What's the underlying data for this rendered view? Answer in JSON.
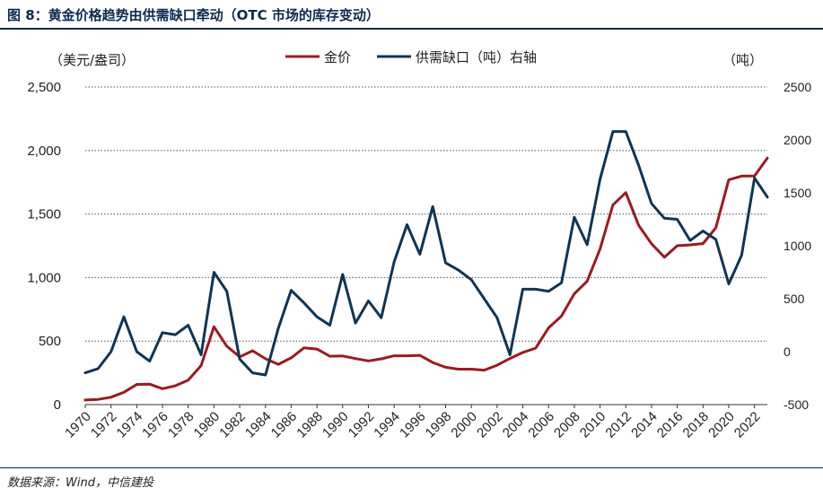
{
  "figure": {
    "title": "图 8：黄金价格趋势由供需缺口牵动（OTC 市场的库存变动）",
    "source": "数据来源：Wind，中信建投"
  },
  "chart_data": {
    "type": "line",
    "left_unit": "（美元/盎司）",
    "right_unit": "（吨）",
    "ylim": [
      0,
      2500
    ],
    "y2lim": [
      -500,
      2500
    ],
    "yticks": [
      "0",
      "500",
      "1,000",
      "1,500",
      "2,000",
      "2,500"
    ],
    "y2ticks": [
      "-500",
      "0",
      "500",
      "1000",
      "1500",
      "2000",
      "2500"
    ],
    "xticks": [
      "1970",
      "1972",
      "1974",
      "1976",
      "1978",
      "1980",
      "1982",
      "1984",
      "1986",
      "1988",
      "1990",
      "1992",
      "1994",
      "1996",
      "1998",
      "2000",
      "2002",
      "2004",
      "2006",
      "2008",
      "2010",
      "2012",
      "2014",
      "2016",
      "2018",
      "2020",
      "2022"
    ],
    "grid": true,
    "legend_position": "top-center",
    "x": [
      1970,
      1971,
      1972,
      1973,
      1974,
      1975,
      1976,
      1977,
      1978,
      1979,
      1980,
      1981,
      1982,
      1983,
      1984,
      1985,
      1986,
      1987,
      1988,
      1989,
      1990,
      1991,
      1992,
      1993,
      1994,
      1995,
      1996,
      1997,
      1998,
      1999,
      2000,
      2001,
      2002,
      2003,
      2004,
      2005,
      2006,
      2007,
      2008,
      2009,
      2010,
      2011,
      2012,
      2013,
      2014,
      2015,
      2016,
      2017,
      2018,
      2019,
      2020,
      2021,
      2022,
      2023
    ],
    "series": [
      {
        "name": "金价",
        "axis": "left",
        "color": "#9b1b1f",
        "values": [
          36,
          41,
          58,
          97,
          159,
          161,
          125,
          148,
          193,
          307,
          613,
          460,
          376,
          424,
          361,
          317,
          368,
          447,
          437,
          381,
          383,
          362,
          344,
          360,
          384,
          384,
          388,
          331,
          294,
          279,
          279,
          271,
          310,
          363,
          410,
          445,
          604,
          697,
          872,
          972,
          1225,
          1572,
          1669,
          1411,
          1266,
          1160,
          1251,
          1257,
          1268,
          1392,
          1770,
          1799,
          1800,
          1941
        ]
      },
      {
        "name": "供需缺口（吨）右轴",
        "axis": "right",
        "color": "#0f3555",
        "values": [
          -200,
          -160,
          0,
          330,
          0,
          -90,
          180,
          160,
          250,
          -30,
          750,
          570,
          -70,
          -200,
          -220,
          220,
          580,
          460,
          330,
          250,
          730,
          270,
          480,
          320,
          850,
          1200,
          920,
          1370,
          840,
          770,
          680,
          500,
          320,
          -30,
          590,
          590,
          570,
          650,
          1270,
          1010,
          1630,
          2080,
          2080,
          1760,
          1400,
          1260,
          1250,
          1050,
          1140,
          1060,
          640,
          910,
          1640,
          1460
        ]
      }
    ]
  }
}
